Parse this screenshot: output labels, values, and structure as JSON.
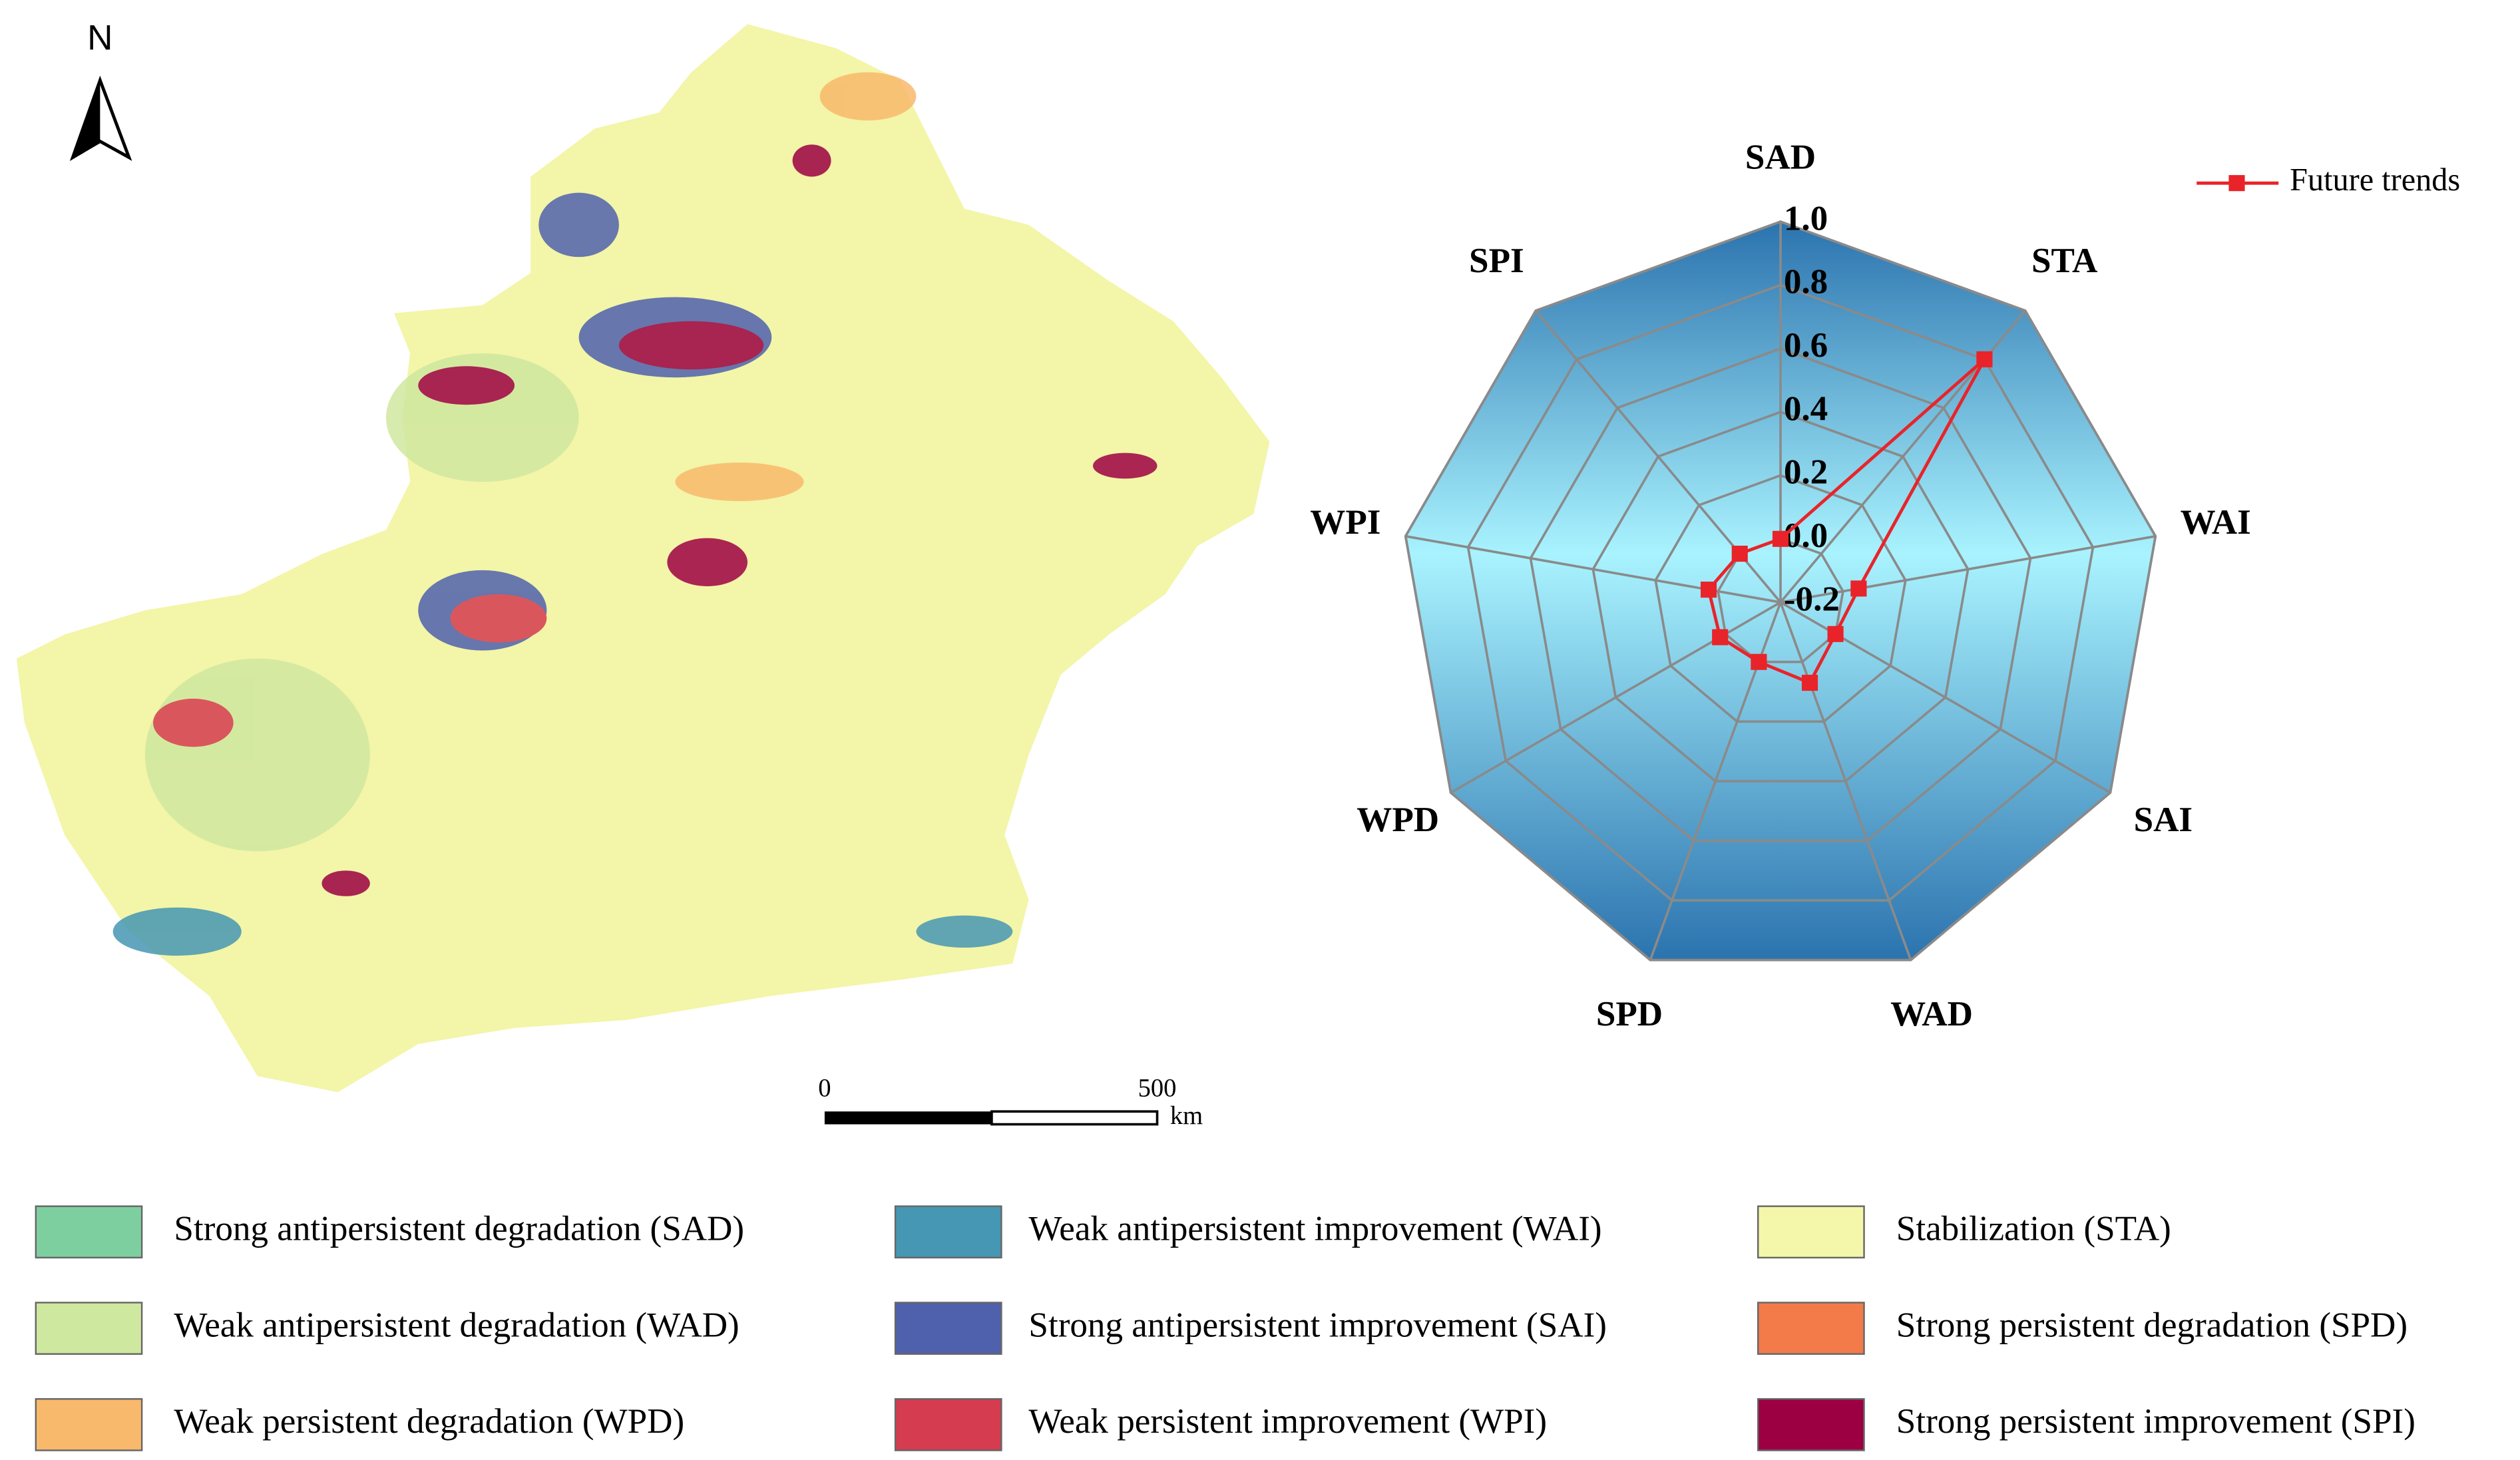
{
  "chart_data": {
    "type": "radar",
    "categories": [
      "SAD",
      "STA",
      "WAI",
      "SAI",
      "WAD",
      "SPD",
      "WPD",
      "WPI",
      "SPI"
    ],
    "ylim": [
      -0.2,
      1.0
    ],
    "yticks": [
      -0.2,
      {
        "value": 0,
        "label": "0.0"
      },
      0.2,
      0.4,
      0.6,
      0.8,
      {
        "value": 1,
        "label": "1.0"
      }
    ],
    "grid": true,
    "legend_position": "upper right",
    "series": [
      {
        "name": "Future trends",
        "color": "#e8242a",
        "values": [
          0.0,
          0.8,
          0.05,
          0.0,
          0.07,
          0.0,
          0.02,
          0.03,
          0.0
        ]
      }
    ]
  },
  "map": {
    "north": "N",
    "scale_start": "0",
    "scale_end": "500",
    "scale_unit": "km"
  },
  "legend": [
    {
      "label": "Strong antipersistent degradation (SAD)",
      "color": "#7ecfa0"
    },
    {
      "label": "Weak antipersistent improvement (WAI)",
      "color": "#4597b3"
    },
    {
      "label": "Stabilization (STA)",
      "color": "#f4f6a9"
    },
    {
      "label": "Weak antipersistent degradation (WAD)",
      "color": "#cfe89f"
    },
    {
      "label": "Strong antipersistent improvement (SAI)",
      "color": "#4f61ad"
    },
    {
      "label": "Strong persistent degradation (SPD)",
      "color": "#f37b4a"
    },
    {
      "label": "Weak persistent degradation (WPD)",
      "color": "#f8b96c"
    },
    {
      "label": "Weak persistent improvement (WPI)",
      "color": "#d53c4f"
    },
    {
      "label": "Strong persistent improvement (SPI)",
      "color": "#9c0043"
    }
  ]
}
